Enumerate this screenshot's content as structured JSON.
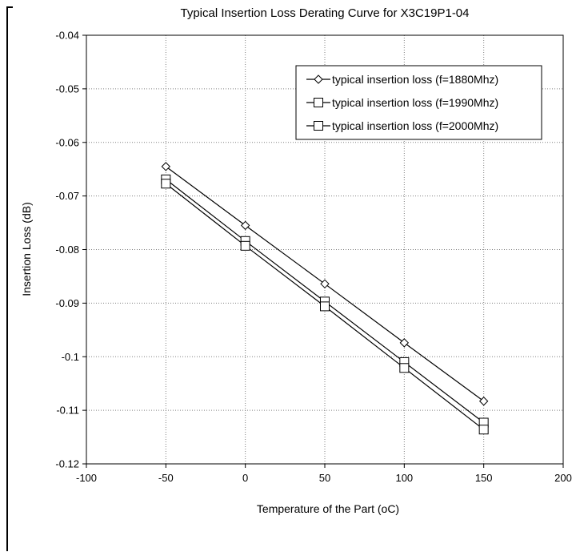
{
  "chart_data": {
    "type": "line",
    "title": "Typical Insertion Loss Derating Curve for X3C19P1-04",
    "xlabel": "Temperature of the Part (oC)",
    "ylabel": "Insertion Loss (dB)",
    "xlim": [
      -100,
      200
    ],
    "ylim": [
      -0.12,
      -0.04
    ],
    "x_ticks": [
      -100,
      -50,
      0,
      50,
      100,
      150,
      200
    ],
    "y_ticks": [
      -0.04,
      -0.05,
      -0.06,
      -0.07,
      -0.08,
      -0.09,
      -0.1,
      -0.11,
      -0.12
    ],
    "x_tick_labels": [
      "-100",
      "-50",
      "0",
      "50",
      "100",
      "150",
      "200"
    ],
    "y_tick_labels": [
      "-0.04",
      "-0.05",
      "-0.06",
      "-0.07",
      "-0.08",
      "-0.09",
      "-0.1",
      "-0.11",
      "-0.12"
    ],
    "grid": true,
    "legend_position": "top-right",
    "x": [
      -50,
      0,
      50,
      100,
      150
    ],
    "series": [
      {
        "name": "typical insertion loss (f=1880Mhz)",
        "marker": "diamond",
        "values": [
          -0.0645,
          -0.0755,
          -0.0864,
          -0.0974,
          -0.1083
        ]
      },
      {
        "name": "typical insertion loss (f=1990Mhz)",
        "marker": "square",
        "values": [
          -0.0669,
          -0.0784,
          -0.0897,
          -0.101,
          -0.1123
        ]
      },
      {
        "name": "typical insertion loss (f=2000Mhz)",
        "marker": "square",
        "values": [
          -0.0677,
          -0.0793,
          -0.0906,
          -0.1021,
          -0.1136
        ]
      }
    ],
    "colors": {
      "line": "#000000",
      "grid": "#808080",
      "background": "#ffffff"
    }
  }
}
